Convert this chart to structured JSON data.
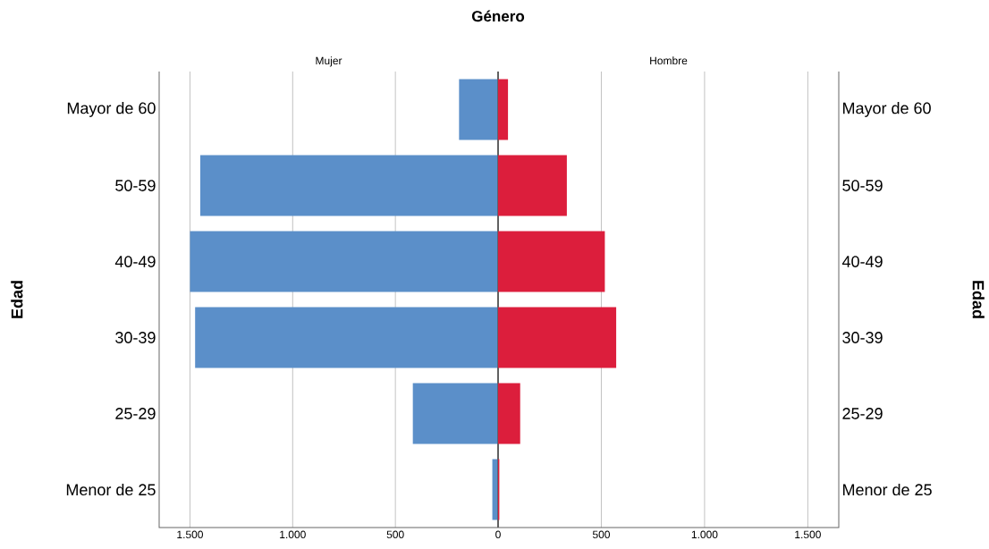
{
  "chart_data": [
    {
      "type": "bar",
      "orientation": "horizontal",
      "title": "Género",
      "subtitle": "Mujer",
      "ylabel": "Edad",
      "categories": [
        "Mayor de 60",
        "50-59",
        "40-49",
        "30-39",
        "25-29",
        "Menor de 25"
      ],
      "values": [
        190,
        1450,
        1500,
        1475,
        415,
        28
      ],
      "color": "#5b8fc9",
      "xlim": [
        1650,
        0
      ],
      "xticks": [
        {
          "value": 1500,
          "label": "1.500"
        },
        {
          "value": 1000,
          "label": "1.000"
        },
        500,
        0
      ],
      "grid": "x"
    },
    {
      "type": "bar",
      "orientation": "horizontal",
      "subtitle": "Hombre",
      "ylabel": "Edad",
      "categories": [
        "Mayor de 60",
        "50-59",
        "40-49",
        "30-39",
        "25-29",
        "Menor de 25"
      ],
      "values": [
        48,
        333,
        517,
        572,
        107,
        6
      ],
      "color": "#dc1e3c",
      "xlim": [
        0,
        1650
      ],
      "xticks": [
        {
          "value": 0,
          "label": null
        },
        500,
        {
          "value": 1000,
          "label": "1.000"
        },
        {
          "value": 1500,
          "label": "1.500"
        }
      ],
      "grid": "x"
    }
  ]
}
